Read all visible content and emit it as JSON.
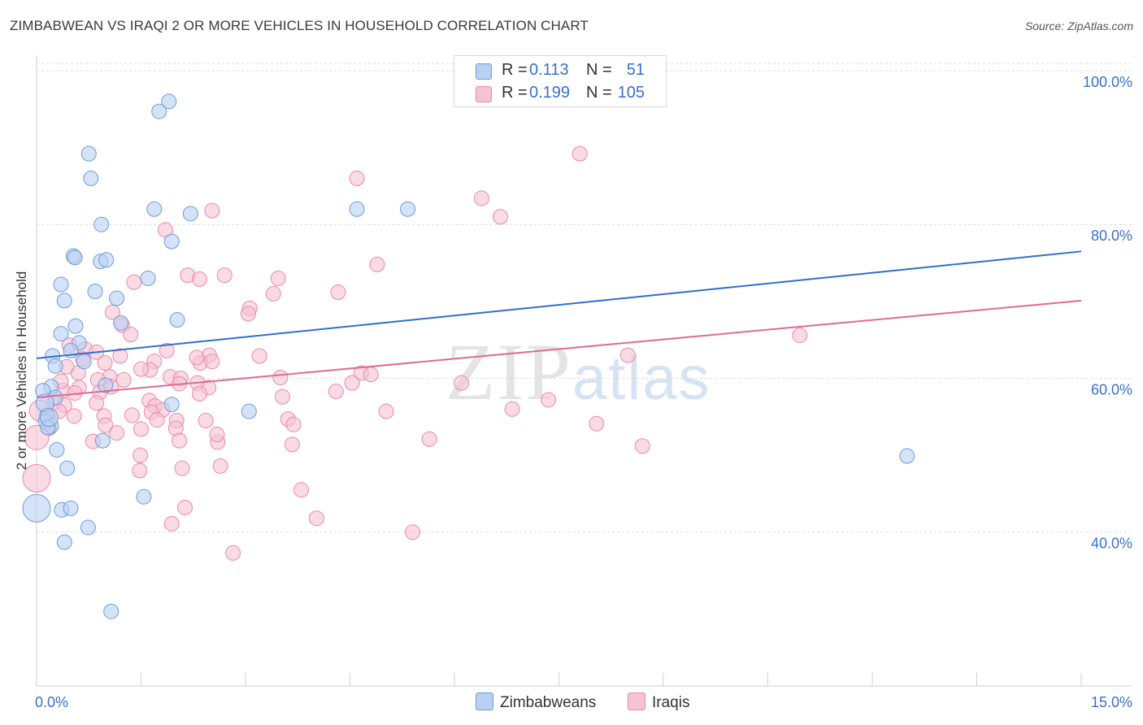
{
  "title": "ZIMBABWEAN VS IRAQI 2 OR MORE VEHICLES IN HOUSEHOLD CORRELATION CHART",
  "source": "Source: ZipAtlas.com",
  "watermark": {
    "zip": "ZIP",
    "atlas": "atlas"
  },
  "colors": {
    "blue_fill": "#b8d0f2",
    "blue_stroke": "#6f9bd9",
    "blue_line": "#2f6fcb",
    "pink_fill": "#f7c2d3",
    "pink_stroke": "#e88aa8",
    "pink_line": "#e06a92",
    "axis_text": "#3b6fd0",
    "grid": "#dcdcdc"
  },
  "legend_top": {
    "rows": [
      {
        "r_label": "R =",
        "r_value": "0.113",
        "n_label": "N =",
        "n_value": "51"
      },
      {
        "r_label": "R =",
        "r_value": "0.199",
        "n_label": "N =",
        "n_value": "105"
      }
    ]
  },
  "legend_bottom": {
    "series0": "Zimbabweans",
    "series1": "Iraqis"
  },
  "chart_data": {
    "type": "scatter",
    "title": "ZIMBABWEAN VS IRAQI 2 OR MORE VEHICLES IN HOUSEHOLD CORRELATION CHART",
    "xlabel": "",
    "ylabel": "2 or more Vehicles in Household",
    "xlim": [
      0,
      15
    ],
    "ylim": [
      20,
      102
    ],
    "x_tick_labels": [
      "0.0%",
      "15.0%"
    ],
    "y_ticks": [
      40,
      60,
      80,
      100
    ],
    "y_tick_labels": [
      "40.0%",
      "60.0%",
      "80.0%",
      "100.0%"
    ],
    "series": [
      {
        "name": "Zimbabweans",
        "R": 0.113,
        "N": 51,
        "trend": {
          "x0": 0,
          "y0": 62.6,
          "x1": 15,
          "y1": 76.5
        },
        "points": [
          [
            1.9,
            96
          ],
          [
            1.76,
            94.7
          ],
          [
            0.75,
            89.2
          ],
          [
            0.78,
            86
          ],
          [
            1.69,
            82
          ],
          [
            2.21,
            81.4
          ],
          [
            5.33,
            82
          ],
          [
            4.6,
            82
          ],
          [
            0.93,
            80
          ],
          [
            1.94,
            77.8
          ],
          [
            0.53,
            75.9
          ],
          [
            0.55,
            75.7
          ],
          [
            0.92,
            75.2
          ],
          [
            1.0,
            75.4
          ],
          [
            1.6,
            73
          ],
          [
            0.35,
            72.2
          ],
          [
            0.84,
            71.3
          ],
          [
            1.15,
            70.4
          ],
          [
            0.4,
            70.1
          ],
          [
            2.02,
            67.6
          ],
          [
            0.56,
            66.8
          ],
          [
            1.21,
            67.2
          ],
          [
            0.35,
            65.8
          ],
          [
            0.61,
            64.6
          ],
          [
            0.49,
            63.6
          ],
          [
            0.23,
            62.9
          ],
          [
            0.27,
            61.6
          ],
          [
            0.68,
            62.2
          ],
          [
            0.99,
            59.1
          ],
          [
            0.21,
            58.9
          ],
          [
            0.09,
            58.4
          ],
          [
            0.27,
            57.5
          ],
          [
            1.94,
            56.6
          ],
          [
            3.05,
            55.7
          ],
          [
            0.15,
            55.2
          ],
          [
            0.13,
            54.4
          ],
          [
            0.21,
            53.8
          ],
          [
            0.16,
            53.6
          ],
          [
            0.95,
            51.9
          ],
          [
            0.29,
            50.7
          ],
          [
            0.44,
            48.3
          ],
          [
            12.5,
            49.9
          ],
          [
            1.54,
            44.6
          ],
          [
            0.36,
            42.9
          ],
          [
            0.49,
            43.1
          ],
          [
            0.74,
            40.6
          ],
          [
            0.4,
            38.7
          ],
          [
            1.07,
            29.7
          ],
          [
            0.0,
            43.1
          ],
          [
            0.12,
            56.8
          ],
          [
            0.18,
            54.9
          ]
        ],
        "point_sizes": [
          9,
          9,
          9,
          9,
          9,
          9,
          9,
          9,
          9,
          9,
          9,
          9,
          9,
          9,
          9,
          9,
          9,
          9,
          9,
          9,
          9,
          9,
          9,
          9,
          9,
          9,
          9,
          9,
          9,
          9,
          9,
          9,
          9,
          9,
          9,
          9,
          9,
          9,
          9,
          9,
          9,
          9,
          9,
          9,
          9,
          9,
          9,
          9,
          17,
          11,
          11
        ]
      },
      {
        "name": "Iraqis",
        "R": 0.199,
        "N": 105,
        "trend": {
          "x0": 0,
          "y0": 57.5,
          "x1": 15,
          "y1": 70.1
        },
        "points": [
          [
            7.8,
            89.2
          ],
          [
            4.6,
            86
          ],
          [
            6.39,
            83.4
          ],
          [
            6.66,
            81
          ],
          [
            2.52,
            81.8
          ],
          [
            1.85,
            79.3
          ],
          [
            4.89,
            74.8
          ],
          [
            2.17,
            73.4
          ],
          [
            2.7,
            73.4
          ],
          [
            3.47,
            73
          ],
          [
            2.34,
            72.9
          ],
          [
            1.4,
            72.5
          ],
          [
            3.4,
            71
          ],
          [
            4.33,
            71.2
          ],
          [
            3.06,
            69.1
          ],
          [
            3.04,
            68.4
          ],
          [
            1.09,
            68.6
          ],
          [
            1.23,
            66.9
          ],
          [
            1.35,
            65.7
          ],
          [
            10.96,
            65.6
          ],
          [
            0.47,
            64.3
          ],
          [
            0.7,
            63.8
          ],
          [
            1.87,
            63.6
          ],
          [
            0.86,
            63.4
          ],
          [
            2.48,
            63
          ],
          [
            1.2,
            62.9
          ],
          [
            3.2,
            62.9
          ],
          [
            8.49,
            63
          ],
          [
            0.66,
            62.5
          ],
          [
            0.98,
            62
          ],
          [
            1.69,
            62.2
          ],
          [
            2.35,
            62
          ],
          [
            2.52,
            62.2
          ],
          [
            1.63,
            61.1
          ],
          [
            4.66,
            60.7
          ],
          [
            4.8,
            60.5
          ],
          [
            1.05,
            60.2
          ],
          [
            1.92,
            60.2
          ],
          [
            2.07,
            60
          ],
          [
            3.5,
            60.1
          ],
          [
            0.6,
            60.7
          ],
          [
            1.25,
            59.8
          ],
          [
            0.88,
            59.8
          ],
          [
            0.38,
            58.4
          ],
          [
            0.61,
            58.8
          ],
          [
            0.91,
            58.2
          ],
          [
            1.07,
            58.9
          ],
          [
            2.05,
            59.3
          ],
          [
            2.31,
            59.4
          ],
          [
            2.47,
            58.8
          ],
          [
            4.53,
            59.4
          ],
          [
            6.1,
            59.4
          ],
          [
            0.55,
            58.1
          ],
          [
            0.86,
            56.8
          ],
          [
            1.62,
            57.1
          ],
          [
            1.7,
            56.4
          ],
          [
            1.81,
            55.9
          ],
          [
            2.34,
            58
          ],
          [
            3.53,
            57.6
          ],
          [
            4.3,
            58.3
          ],
          [
            7.35,
            57.2
          ],
          [
            0.25,
            56.9
          ],
          [
            0.4,
            56.5
          ],
          [
            0.32,
            55.7
          ],
          [
            1.65,
            55.6
          ],
          [
            5.02,
            55.7
          ],
          [
            6.83,
            56
          ],
          [
            0.54,
            55.1
          ],
          [
            1.37,
            55.2
          ],
          [
            1.73,
            54.6
          ],
          [
            0.97,
            55.1
          ],
          [
            2.01,
            54.5
          ],
          [
            2.43,
            54.5
          ],
          [
            3.61,
            54.7
          ],
          [
            3.69,
            54
          ],
          [
            0.99,
            53.9
          ],
          [
            2.0,
            53.5
          ],
          [
            1.5,
            53.4
          ],
          [
            8.04,
            54.1
          ],
          [
            1.15,
            52.9
          ],
          [
            0.18,
            53.5
          ],
          [
            0.81,
            51.8
          ],
          [
            2.05,
            51.9
          ],
          [
            2.6,
            51.7
          ],
          [
            2.59,
            52.7
          ],
          [
            3.67,
            51.4
          ],
          [
            5.64,
            52.1
          ],
          [
            8.7,
            51.2
          ],
          [
            1.49,
            50
          ],
          [
            2.64,
            48.6
          ],
          [
            1.48,
            48
          ],
          [
            2.09,
            48.3
          ],
          [
            3.8,
            45.5
          ],
          [
            2.13,
            43.2
          ],
          [
            4.02,
            41.8
          ],
          [
            1.94,
            41.1
          ],
          [
            5.4,
            40
          ],
          [
            2.82,
            37.3
          ],
          [
            0.0,
            47
          ],
          [
            0.0,
            52.3
          ],
          [
            0.05,
            55.8
          ],
          [
            0.35,
            59.6
          ],
          [
            0.43,
            61.5
          ],
          [
            1.5,
            61.2
          ],
          [
            2.3,
            62.7
          ]
        ],
        "point_sizes": [
          9,
          9,
          9,
          9,
          9,
          9,
          9,
          9,
          9,
          9,
          9,
          9,
          9,
          9,
          9,
          9,
          9,
          9,
          9,
          9,
          9,
          9,
          9,
          9,
          9,
          9,
          9,
          9,
          9,
          9,
          9,
          9,
          9,
          9,
          9,
          9,
          9,
          9,
          9,
          9,
          9,
          9,
          9,
          9,
          9,
          9,
          9,
          9,
          9,
          9,
          9,
          9,
          9,
          9,
          9,
          9,
          9,
          9,
          9,
          9,
          9,
          9,
          9,
          9,
          9,
          9,
          9,
          9,
          9,
          9,
          9,
          9,
          9,
          9,
          9,
          9,
          9,
          9,
          9,
          9,
          9,
          9,
          9,
          9,
          9,
          9,
          9,
          9,
          9,
          9,
          9,
          9,
          9,
          9,
          9,
          9,
          9,
          9,
          17,
          15,
          13,
          9,
          9,
          9,
          9
        ]
      }
    ]
  }
}
